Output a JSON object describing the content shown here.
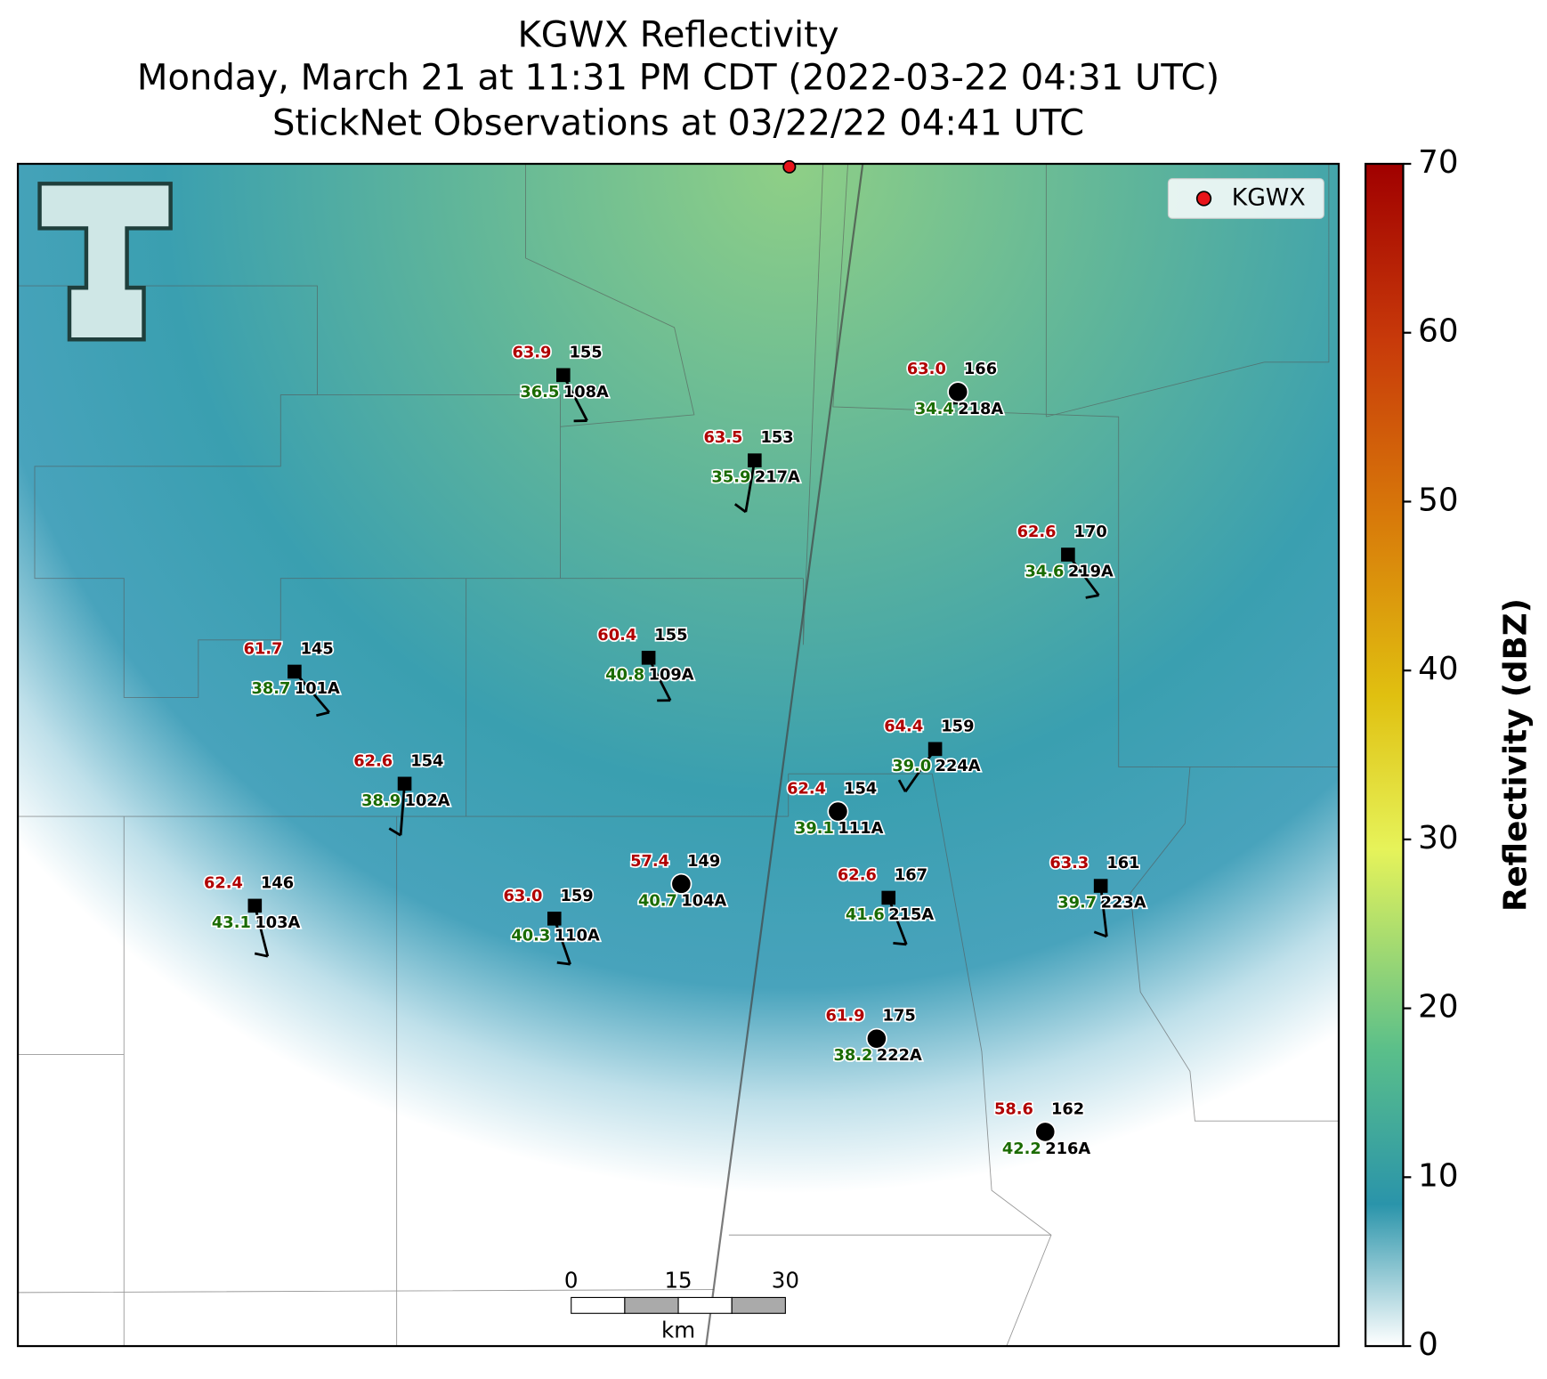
{
  "header": {
    "title_lines": [
      "KGWX Reflectivity",
      "Monday, March 21 at 11:31 PM CDT (2022-03-22 04:31 UTC)",
      "StickNet Observations at 03/22/22 04:41 UTC"
    ]
  },
  "legend": {
    "label": "KGWX",
    "color": "#e8141a"
  },
  "colorbar": {
    "label": "Reflectivity (dBZ)",
    "lim": [
      0,
      70
    ],
    "ticks": [
      0,
      10,
      20,
      30,
      40,
      50,
      60,
      70
    ]
  },
  "scale_bar": {
    "ticks": [
      0,
      15,
      30
    ],
    "unit": "km"
  },
  "stations": [
    {
      "id": "108A",
      "temperature": "63.9",
      "dewpoint": "36.5",
      "value": "155",
      "marker": "square"
    },
    {
      "id": "218A",
      "temperature": "63.0",
      "dewpoint": "34.4",
      "value": "166",
      "marker": "circle"
    },
    {
      "id": "217A",
      "temperature": "63.5",
      "dewpoint": "35.9",
      "value": "153",
      "marker": "square"
    },
    {
      "id": "219A",
      "temperature": "62.6",
      "dewpoint": "34.6",
      "value": "170",
      "marker": "square"
    },
    {
      "id": "109A",
      "temperature": "60.4",
      "dewpoint": "40.8",
      "value": "155",
      "marker": "square"
    },
    {
      "id": "101A",
      "temperature": "61.7",
      "dewpoint": "38.7",
      "value": "145",
      "marker": "square"
    },
    {
      "id": "224A",
      "temperature": "64.4",
      "dewpoint": "39.0",
      "value": "159",
      "marker": "square"
    },
    {
      "id": "102A",
      "temperature": "62.6",
      "dewpoint": "38.9",
      "value": "154",
      "marker": "square"
    },
    {
      "id": "111A",
      "temperature": "62.4",
      "dewpoint": "39.1",
      "value": "154",
      "marker": "circle"
    },
    {
      "id": "104A",
      "temperature": "57.4",
      "dewpoint": "40.7",
      "value": "149",
      "marker": "circle"
    },
    {
      "id": "215A",
      "temperature": "62.6",
      "dewpoint": "41.6",
      "value": "167",
      "marker": "square"
    },
    {
      "id": "223A",
      "temperature": "63.3",
      "dewpoint": "39.7",
      "value": "161",
      "marker": "square"
    },
    {
      "id": "103A",
      "temperature": "62.4",
      "dewpoint": "43.1",
      "value": "146",
      "marker": "square"
    },
    {
      "id": "110A",
      "temperature": "63.0",
      "dewpoint": "40.3",
      "value": "159",
      "marker": "square"
    },
    {
      "id": "222A",
      "temperature": "61.9",
      "dewpoint": "38.2",
      "value": "175",
      "marker": "circle"
    },
    {
      "id": "216A",
      "temperature": "58.6",
      "dewpoint": "42.2",
      "value": "162",
      "marker": "circle"
    }
  ]
}
